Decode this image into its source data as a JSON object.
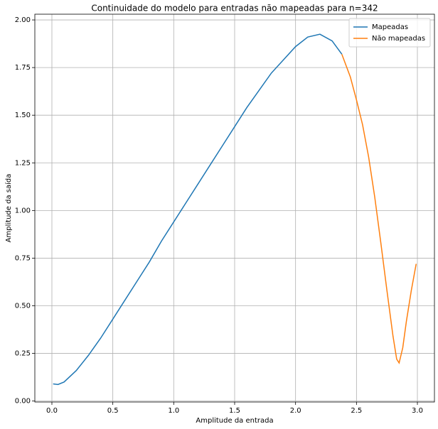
{
  "chart_data": {
    "type": "line",
    "title": "Continuidade do modelo para entradas não mapeadas para n=342",
    "x_label": "Amplitude da entrada",
    "y_label": "Amplitude da saída",
    "series": [
      {
        "name": "Mapeadas",
        "color": "#1f77b4",
        "x": [
          0.01,
          0.05,
          0.1,
          0.2,
          0.3,
          0.4,
          0.5,
          0.6,
          0.7,
          0.8,
          0.9,
          1.0,
          1.1,
          1.2,
          1.3,
          1.4,
          1.5,
          1.6,
          1.7,
          1.8,
          1.9,
          2.0,
          2.1,
          2.2,
          2.3,
          2.38
        ],
        "values": [
          0.09,
          0.087,
          0.1,
          0.16,
          0.24,
          0.33,
          0.43,
          0.53,
          0.63,
          0.73,
          0.84,
          0.94,
          1.04,
          1.14,
          1.24,
          1.34,
          1.44,
          1.54,
          1.63,
          1.72,
          1.79,
          1.86,
          1.91,
          1.925,
          1.89,
          1.82
        ]
      },
      {
        "name": "Não mapeadas",
        "color": "#ff7f0e",
        "x": [
          2.38,
          2.45,
          2.5,
          2.55,
          2.6,
          2.65,
          2.7,
          2.75,
          2.8,
          2.83,
          2.85,
          2.88,
          2.91,
          2.95,
          2.99
        ],
        "values": [
          1.82,
          1.7,
          1.58,
          1.45,
          1.28,
          1.07,
          0.83,
          0.58,
          0.34,
          0.22,
          0.2,
          0.28,
          0.42,
          0.58,
          0.72
        ]
      }
    ],
    "xlim": [
      -0.14,
      3.14
    ],
    "ylim": [
      -0.005,
      2.03
    ],
    "xticks": [
      {
        "value": 0,
        "label": "0.0"
      },
      {
        "value": 0.5,
        "label": "0.5"
      },
      {
        "value": 1,
        "label": "1.0"
      },
      {
        "value": 1.5,
        "label": "1.5"
      },
      {
        "value": 2,
        "label": "2.0"
      },
      {
        "value": 2.5,
        "label": "2.5"
      },
      {
        "value": 3,
        "label": "3.0"
      }
    ],
    "yticks": [
      {
        "value": 0,
        "label": "0.00"
      },
      {
        "value": 0.25,
        "label": "0.25"
      },
      {
        "value": 0.5,
        "label": "0.50"
      },
      {
        "value": 0.75,
        "label": "0.75"
      },
      {
        "value": 1,
        "label": "1.00"
      },
      {
        "value": 1.25,
        "label": "1.25"
      },
      {
        "value": 1.5,
        "label": "1.50"
      },
      {
        "value": 1.75,
        "label": "1.75"
      },
      {
        "value": 2,
        "label": "2.00"
      }
    ],
    "grid": true,
    "legend": "upper-right"
  }
}
